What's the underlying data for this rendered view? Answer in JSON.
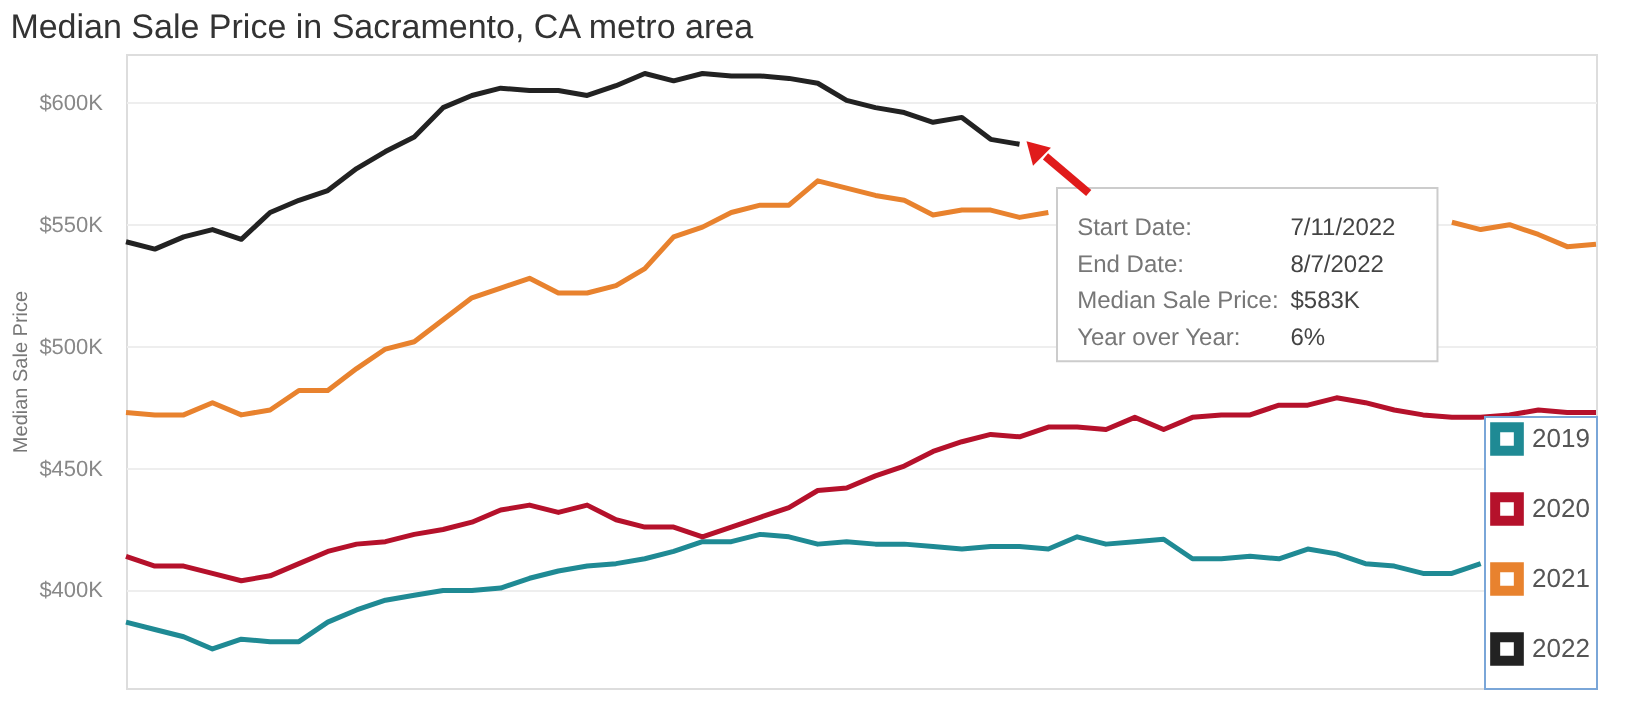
{
  "chart_data": {
    "type": "line",
    "title": "Median Sale Price in Sacramento, CA metro area",
    "ylabel": "Median Sale Price",
    "categories": [
      null,
      null,
      null,
      null,
      null,
      null,
      null,
      null,
      null,
      null,
      null,
      null,
      null,
      null,
      null,
      null,
      null,
      null,
      null,
      null,
      null,
      null,
      null,
      null,
      null,
      null,
      null,
      null,
      null,
      null,
      null,
      null,
      null,
      null,
      null,
      null,
      null,
      null,
      null,
      null,
      null,
      null,
      null,
      null,
      null,
      null,
      null,
      null,
      null,
      null,
      null,
      null
    ],
    "series": [
      {
        "name": "2019",
        "color": "#1f8a94",
        "values": [
          387,
          384,
          381,
          376,
          380,
          379,
          379,
          387,
          392,
          396,
          398,
          400,
          400,
          401,
          405,
          408,
          410,
          411,
          413,
          416,
          420,
          420,
          423,
          422,
          419,
          420,
          419,
          419,
          418,
          417,
          418,
          418,
          417,
          422,
          419,
          420,
          421,
          413,
          413,
          414,
          413,
          417,
          415,
          411,
          410,
          407,
          407,
          411,
          null,
          null,
          null,
          null
        ]
      },
      {
        "name": "2020",
        "color": "#b5112b",
        "values": [
          414,
          410,
          410,
          407,
          404,
          406,
          411,
          416,
          419,
          420,
          423,
          425,
          428,
          433,
          435,
          432,
          435,
          429,
          426,
          426,
          422,
          426,
          430,
          434,
          441,
          442,
          447,
          451,
          457,
          461,
          464,
          463,
          467,
          467,
          466,
          471,
          466,
          471,
          472,
          472,
          476,
          476,
          479,
          477,
          474,
          472,
          471,
          471,
          472,
          474,
          473,
          473
        ]
      },
      {
        "name": "2021",
        "color": "#e8822e",
        "values": [
          473,
          472,
          472,
          477,
          472,
          474,
          482,
          482,
          491,
          499,
          502,
          511,
          520,
          524,
          528,
          522,
          522,
          525,
          532,
          545,
          549,
          555,
          558,
          558,
          568,
          565,
          562,
          560,
          554,
          556,
          556,
          553,
          555,
          null,
          null,
          null,
          null,
          null,
          null,
          null,
          null,
          null,
          null,
          null,
          null,
          null,
          551,
          548,
          550,
          546,
          541,
          542
        ]
      },
      {
        "name": "2022",
        "color": "#222222",
        "values": [
          543,
          540,
          545,
          548,
          544,
          555,
          560,
          564,
          573,
          580,
          586,
          598,
          603,
          606,
          605,
          605,
          603,
          607,
          612,
          609,
          612,
          611,
          611,
          610,
          608,
          601,
          598,
          596,
          592,
          594,
          585,
          583,
          null,
          null,
          null,
          null,
          null,
          null,
          null,
          null,
          null,
          null,
          null,
          null,
          null,
          null,
          null,
          null,
          null,
          null,
          null,
          null
        ]
      }
    ],
    "ylim": [
      360,
      620
    ],
    "yticks": [
      {
        "value": 400,
        "label": "$400K"
      },
      {
        "value": 450,
        "label": "$450K"
      },
      {
        "value": 500,
        "label": "$500K"
      },
      {
        "value": 550,
        "label": "$550K"
      },
      {
        "value": 600,
        "label": "$600K"
      }
    ],
    "grid": "y",
    "legend": "bottom right",
    "marker": "none",
    "line_style": "solid",
    "annotations": [
      "Start Date: 7/11/2022",
      "End Date: 8/7/2022",
      "Median Sale Price: $583K",
      "Year over Year: 6%"
    ]
  }
}
